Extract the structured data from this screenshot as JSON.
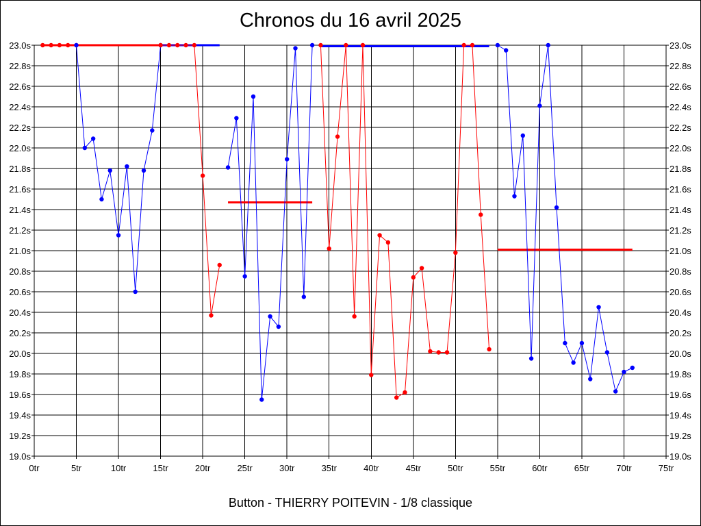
{
  "chart_data": {
    "type": "line",
    "title": "Chronos du 16 avril 2025",
    "subtitle": "Button - THIERRY POITEVIN - 1/8 classique",
    "xlim": [
      0,
      75
    ],
    "ylim": [
      19.0,
      23.0
    ],
    "x_ticks": [
      0,
      5,
      10,
      15,
      20,
      25,
      30,
      35,
      40,
      45,
      50,
      55,
      60,
      65,
      70,
      75
    ],
    "x_tick_labels": [
      "0tr",
      "5tr",
      "10tr",
      "15tr",
      "20tr",
      "25tr",
      "30tr",
      "35tr",
      "40tr",
      "45tr",
      "50tr",
      "55tr",
      "60tr",
      "65tr",
      "70tr",
      "75tr"
    ],
    "y_ticks": [
      19.0,
      19.2,
      19.4,
      19.6,
      19.8,
      20.0,
      20.2,
      20.4,
      20.6,
      20.8,
      21.0,
      21.2,
      21.4,
      21.6,
      21.8,
      22.0,
      22.2,
      22.4,
      22.6,
      22.8,
      23.0
    ],
    "y_tick_labels": [
      "19.0s",
      "19.2s",
      "19.4s",
      "19.6s",
      "19.8s",
      "20.0s",
      "20.2s",
      "20.4s",
      "20.6s",
      "20.8s",
      "21.0s",
      "21.2s",
      "21.4s",
      "21.6s",
      "21.8s",
      "22.0s",
      "22.2s",
      "22.4s",
      "22.6s",
      "22.8s",
      "23.0s"
    ],
    "grid": true,
    "colors": {
      "red": "#ff0000",
      "blue": "#0000ff"
    },
    "series": [
      {
        "color": "red",
        "x": [
          1,
          2,
          3,
          4,
          5
        ],
        "y": [
          23.0,
          23.0,
          23.0,
          23.0,
          23.0
        ]
      },
      {
        "color": "blue",
        "x": [
          5,
          6,
          7,
          8,
          9,
          10,
          11,
          12,
          13,
          14,
          15
        ],
        "y": [
          23.0,
          22.0,
          22.09,
          21.5,
          21.78,
          21.15,
          21.82,
          20.6,
          21.78,
          22.17,
          23.0
        ]
      },
      {
        "color": "red",
        "x": [
          15,
          16,
          17,
          18,
          19,
          20,
          21,
          22
        ],
        "y": [
          23.0,
          23.0,
          23.0,
          23.0,
          23.0,
          21.73,
          20.37,
          20.86
        ]
      },
      {
        "color": "blue",
        "x": [
          23,
          24,
          25,
          26,
          27,
          28,
          29,
          30,
          31,
          32,
          33
        ],
        "y": [
          21.81,
          22.29,
          20.75,
          22.5,
          19.55,
          20.36,
          20.26,
          21.89,
          22.97,
          20.55,
          23.0
        ]
      },
      {
        "color": "red",
        "x": [
          34,
          35,
          36,
          37,
          38,
          39,
          40,
          41,
          42,
          43,
          44,
          45,
          46,
          47,
          48,
          49,
          50,
          51,
          52,
          53,
          54
        ],
        "y": [
          23.0,
          21.02,
          22.11,
          23.0,
          20.36,
          23.0,
          19.79,
          21.15,
          21.08,
          19.57,
          19.62,
          20.74,
          20.83,
          20.02,
          20.01,
          20.01,
          20.98,
          23.0,
          23.0,
          21.35,
          20.04
        ]
      },
      {
        "color": "blue",
        "x": [
          55,
          56,
          57,
          58,
          59,
          60,
          61,
          62,
          63,
          64,
          65,
          66,
          67,
          68,
          69,
          70,
          71
        ],
        "y": [
          23.0,
          22.95,
          21.53,
          22.12,
          19.95,
          22.41,
          23.0,
          21.42,
          20.1,
          19.91,
          20.1,
          19.75,
          20.45,
          20.01,
          19.63,
          19.82,
          19.86
        ]
      }
    ],
    "averages": [
      {
        "color": "red",
        "x": [
          1,
          15
        ],
        "y": 23.0
      },
      {
        "color": "blue",
        "x": [
          15,
          22
        ],
        "y": 23.0
      },
      {
        "color": "red",
        "x": [
          23,
          33
        ],
        "y": 21.47
      },
      {
        "color": "blue",
        "x": [
          34,
          54
        ],
        "y": 22.99
      },
      {
        "color": "red",
        "x": [
          55,
          71
        ],
        "y": 21.01
      }
    ]
  }
}
